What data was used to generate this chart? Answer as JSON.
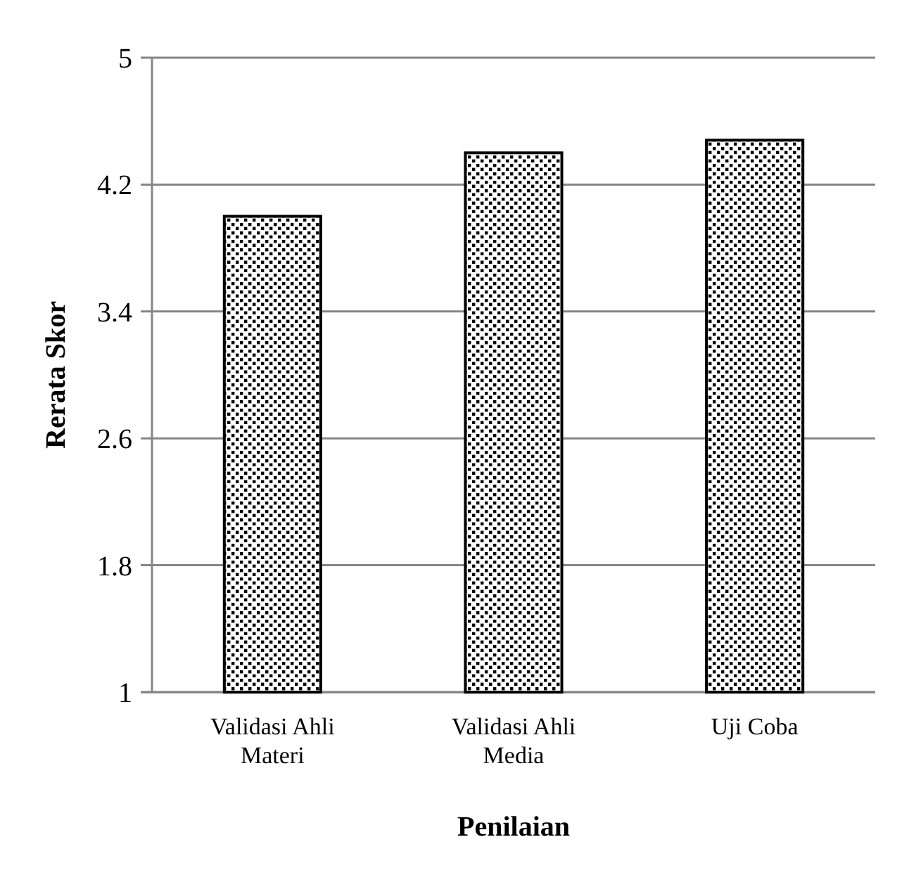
{
  "chart_data": {
    "type": "bar",
    "xlabel": "Penilaian",
    "ylabel": "Rerata Skor",
    "categories": [
      "Validasi Ahli Materi",
      "Validasi Ahli Media",
      "Uji Coba"
    ],
    "values": [
      4.0,
      4.4,
      4.48
    ],
    "color": "#000000",
    "ylim": [
      1,
      5
    ],
    "yticks": [
      1,
      1.8,
      2.6,
      3.4,
      4.2,
      5
    ],
    "grid": "y"
  }
}
